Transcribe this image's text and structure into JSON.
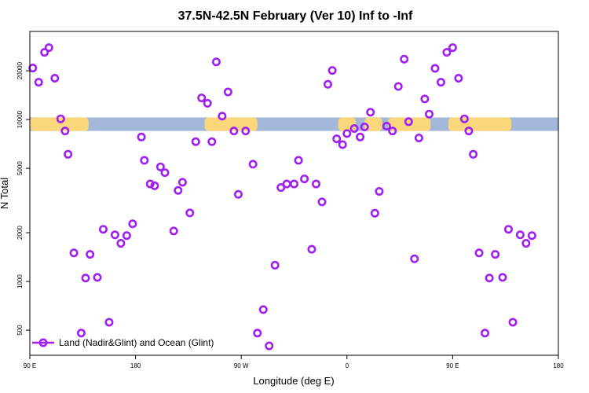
{
  "chart_data": {
    "type": "scatter",
    "title": "37.5N-42.5N February (Ver 10)   Inf to -Inf",
    "xlabel": "Longitude (deg E)",
    "ylabel": "N Total",
    "xlim": [
      90,
      450
    ],
    "ylim": [
      350,
      35000
    ],
    "y_scale": "log",
    "grid": false,
    "legend_position": "bottom-left",
    "x_ticks": [
      {
        "value": 90,
        "label": "90 E"
      },
      {
        "value": 162,
        "label": "180"
      },
      {
        "value": 234,
        "label": "90 W"
      },
      {
        "value": 306,
        "label": "0"
      },
      {
        "value": 378,
        "label": "90 E"
      },
      {
        "value": 450,
        "label": "180"
      }
    ],
    "y_ticks": [
      {
        "value": 500,
        "label": "500"
      },
      {
        "value": 1000,
        "label": "1000"
      },
      {
        "value": 2000,
        "label": "2000"
      },
      {
        "value": 5000,
        "label": "5000"
      },
      {
        "value": 10000,
        "label": "10000"
      },
      {
        "value": 20000,
        "label": "20000"
      }
    ],
    "band": {
      "y_low": 8500,
      "y_high": 10300,
      "base_color": "#a3b8d8",
      "land_color": "#f9d77a",
      "land_segments": [
        [
          90,
          130
        ],
        [
          209,
          245
        ],
        [
          300,
          312
        ],
        [
          318,
          330
        ],
        [
          334,
          363
        ],
        [
          375,
          418
        ]
      ]
    },
    "series": [
      {
        "name": "Land (Nadir&Glint) and Ocean (Glint)",
        "color": "#a020f0",
        "points": [
          [
            92,
            20800
          ],
          [
            96,
            17000
          ],
          [
            100,
            26000
          ],
          [
            103,
            27800
          ],
          [
            107,
            18000
          ],
          [
            111,
            10100
          ],
          [
            114,
            8500
          ],
          [
            116,
            6100
          ],
          [
            120,
            1500
          ],
          [
            125,
            480
          ],
          [
            128,
            1050
          ],
          [
            131,
            1470
          ],
          [
            136,
            1060
          ],
          [
            140,
            2100
          ],
          [
            144,
            560
          ],
          [
            148,
            1940
          ],
          [
            152,
            1720
          ],
          [
            156,
            1920
          ],
          [
            160,
            2270
          ],
          [
            166,
            7800
          ],
          [
            168,
            5600
          ],
          [
            172,
            4000
          ],
          [
            175,
            3900
          ],
          [
            179,
            5100
          ],
          [
            182,
            4700
          ],
          [
            188,
            2050
          ],
          [
            191,
            3650
          ],
          [
            194,
            4100
          ],
          [
            199,
            2650
          ],
          [
            203,
            7300
          ],
          [
            207,
            13600
          ],
          [
            211,
            12600
          ],
          [
            214,
            7300
          ],
          [
            217,
            22700
          ],
          [
            221,
            10500
          ],
          [
            225,
            14800
          ],
          [
            229,
            8500
          ],
          [
            232,
            3450
          ],
          [
            237,
            8500
          ],
          [
            242,
            5300
          ],
          [
            245,
            480
          ],
          [
            249,
            670
          ],
          [
            253,
            400
          ],
          [
            257,
            1260
          ],
          [
            261,
            3800
          ],
          [
            265,
            4000
          ],
          [
            270,
            4000
          ],
          [
            273,
            5600
          ],
          [
            277,
            4300
          ],
          [
            282,
            1580
          ],
          [
            285,
            4000
          ],
          [
            289,
            3100
          ],
          [
            293,
            16500
          ],
          [
            296,
            20100
          ],
          [
            299,
            7600
          ],
          [
            303,
            7000
          ],
          [
            306,
            8200
          ],
          [
            311,
            8800
          ],
          [
            315,
            7800
          ],
          [
            318,
            9000
          ],
          [
            322,
            11100
          ],
          [
            325,
            2640
          ],
          [
            328,
            3600
          ],
          [
            333,
            9100
          ],
          [
            337,
            8500
          ],
          [
            341,
            16000
          ],
          [
            345,
            23600
          ],
          [
            348,
            9700
          ],
          [
            352,
            1380
          ],
          [
            355,
            7700
          ],
          [
            359,
            13400
          ],
          [
            362,
            10800
          ],
          [
            366,
            20700
          ],
          [
            370,
            17000
          ],
          [
            374,
            26000
          ],
          [
            378,
            27800
          ],
          [
            382,
            18000
          ],
          [
            386,
            10100
          ],
          [
            389,
            8500
          ],
          [
            392,
            6100
          ],
          [
            396,
            1500
          ],
          [
            400,
            480
          ],
          [
            403,
            1050
          ],
          [
            407,
            1470
          ],
          [
            412,
            1060
          ],
          [
            416,
            2100
          ],
          [
            419,
            560
          ],
          [
            424,
            1940
          ],
          [
            428,
            1720
          ],
          [
            432,
            1920
          ]
        ]
      }
    ]
  }
}
